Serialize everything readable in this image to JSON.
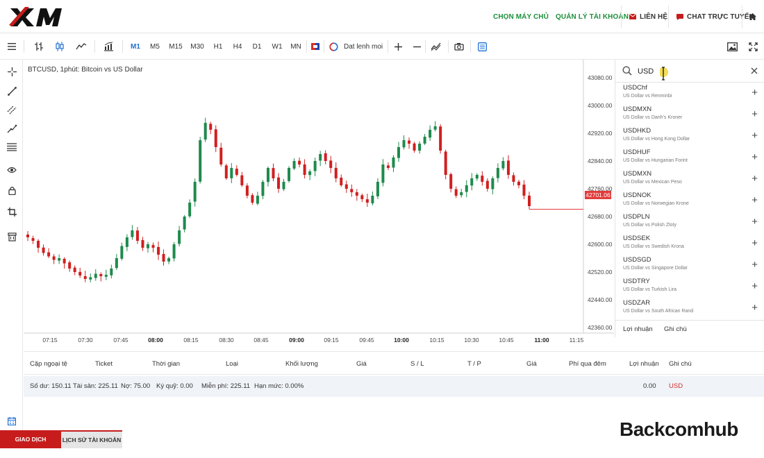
{
  "header": {
    "logo_text": "XM",
    "links": [
      "CHỌN MÁY CHỦ",
      "QUẢN LÝ TÀI KHOẢN"
    ],
    "contact": "LIÊN HỆ",
    "chat": "CHAT TRỰC TUYẾN",
    "accent": "#1d8f3a",
    "brand_red": "#c71c1c"
  },
  "toolbar": {
    "timeframes": [
      "M1",
      "M5",
      "M15",
      "M30",
      "H1",
      "H4",
      "D1",
      "W1",
      "MN"
    ],
    "active_timeframe": "M1",
    "order_label": "Dat lenh moi",
    "icons": [
      "menu-icon",
      "candle-type-icon",
      "bar-chart-icon",
      "line-chart-icon",
      "indicators-icon",
      "flag-icon",
      "order-icon",
      "zoom-in-icon",
      "zoom-out-icon",
      "drawing-icon",
      "camera-icon",
      "template-icon",
      "screenshot-icon",
      "fullscreen-icon"
    ]
  },
  "left_tools": [
    "crosshair-icon",
    "line-icon",
    "channel-icon",
    "trend-icon",
    "fibonacci-icon",
    "eye-icon",
    "lock-icon",
    "crop-icon",
    "delete-icon",
    "calendar-icon"
  ],
  "chart": {
    "title": "BTCUSD, 1phút: Bitcoin vs US Dollar",
    "current_price": "42701.06",
    "yticks": [
      "43080.00",
      "43000.00",
      "42920.00",
      "42840.00",
      "42760.00",
      "42680.00",
      "42600.00",
      "42520.00",
      "42440.00",
      "42360.00"
    ],
    "xticks": [
      {
        "label": "07:15",
        "bold": false
      },
      {
        "label": "07:30",
        "bold": false
      },
      {
        "label": "07:45",
        "bold": false
      },
      {
        "label": "08:00",
        "bold": true
      },
      {
        "label": "08:15",
        "bold": false
      },
      {
        "label": "08:30",
        "bold": false
      },
      {
        "label": "08:45",
        "bold": false
      },
      {
        "label": "09:00",
        "bold": true
      },
      {
        "label": "09:15",
        "bold": false
      },
      {
        "label": "09:45",
        "bold": false
      },
      {
        "label": "10:00",
        "bold": true
      },
      {
        "label": "10:15",
        "bold": false
      },
      {
        "label": "10:30",
        "bold": false
      },
      {
        "label": "10:45",
        "bold": false
      },
      {
        "label": "11:00",
        "bold": true
      },
      {
        "label": "11:15",
        "bold": false
      }
    ],
    "up_color": "#1e8a4c",
    "down_color": "#d11f1f"
  },
  "chart_data": {
    "type": "candlestick",
    "title": "BTCUSD, 1phút: Bitcoin vs US Dollar",
    "ylim": [
      42360,
      43100
    ],
    "close_series": [
      42620,
      42610,
      42590,
      42575,
      42565,
      42555,
      42560,
      42545,
      42530,
      42520,
      42510,
      42500,
      42505,
      42515,
      42508,
      42512,
      42530,
      42560,
      42595,
      42620,
      42640,
      42610,
      42590,
      42600,
      42590,
      42570,
      42550,
      42560,
      42600,
      42640,
      42680,
      42720,
      42780,
      42900,
      42950,
      42930,
      42880,
      42830,
      42790,
      42820,
      42800,
      42770,
      42740,
      42720,
      42740,
      42780,
      42820,
      42790,
      42760,
      42780,
      42820,
      42840,
      42830,
      42800,
      42810,
      42840,
      42860,
      42840,
      42820,
      42790,
      42770,
      42760,
      42750,
      42740,
      42730,
      42720,
      42740,
      42780,
      42830,
      42820,
      42850,
      42880,
      42900,
      42890,
      42870,
      42890,
      42910,
      42930,
      42940,
      42870,
      42800,
      42760,
      42740,
      42750,
      42770,
      42790,
      42800,
      42780,
      42760,
      42790,
      42820,
      42840,
      42800,
      42780,
      42770,
      42740,
      42710
    ],
    "current_price": 42701.06
  },
  "panel": {
    "search_value": "USD",
    "symbols": [
      {
        "code": "USDChf",
        "desc": "US Dollar vs Renminbi"
      },
      {
        "code": "USDMXN",
        "desc": "US Dollar vs Danh's Kroner"
      },
      {
        "code": "USDHKD",
        "desc": "US Dollar vs Hong Kong Dollar"
      },
      {
        "code": "USDHUF",
        "desc": "US Dollar vs Hungarian Forint"
      },
      {
        "code": "USDMXN",
        "desc": "US Dollar vs Mexican Peso"
      },
      {
        "code": "USDNOK",
        "desc": "US Dollar vs Norwegian Krone"
      },
      {
        "code": "USDPLN",
        "desc": "US Dollar vs Polish Zloty"
      },
      {
        "code": "USDSEK",
        "desc": "US Dollar vs Swedish Krona"
      },
      {
        "code": "USDSGD",
        "desc": "US Dollar vs Singapore Dollar"
      },
      {
        "code": "USDTRY",
        "desc": "US Dollar vs Turkish Lira"
      },
      {
        "code": "USDZAR",
        "desc": "US Dollar vs South African Rand"
      }
    ],
    "tabs": [
      "Lợi nhuận",
      "Ghi chú"
    ]
  },
  "table": {
    "columns": [
      "Cặp ngoại tệ",
      "Ticket",
      "Thời gian",
      "Loại",
      "Khối lượng",
      "Giá",
      "S / L",
      "T / P",
      "Giá",
      "Phí qua đêm",
      "Lợi nhuận",
      "Ghi chú"
    ],
    "summary": [
      "Số dư: 150.11",
      "Tài sản: 225.11",
      "Nợ: 75.00",
      "Ký quỹ: 0.00",
      "Miễn phí: 225.11",
      "Hạn mức: 0.00%"
    ],
    "profit": "0.00",
    "currency": "USD"
  },
  "footer": {
    "tabs": [
      "GIAO DỊCH",
      "LỊCH SỬ TÀI KHOẢN"
    ]
  },
  "brand": "Backcomhub"
}
